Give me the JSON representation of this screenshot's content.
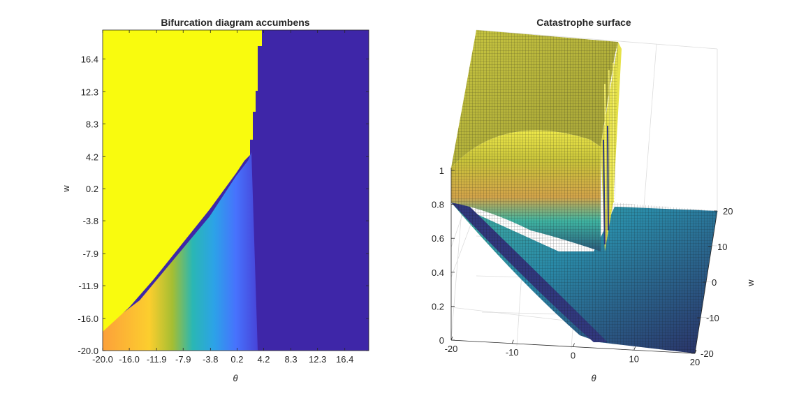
{
  "chart_data": [
    {
      "type": "heatmap",
      "title": "Bifurcation diagram accumbens",
      "xlabel": "θ",
      "ylabel": "w",
      "xlim": [
        -20,
        20
      ],
      "ylim": [
        -20,
        20
      ],
      "colormap": "parula",
      "xticks": [
        "-20.0",
        "-16.0",
        "-11.9",
        "-7.9",
        "-3.8",
        "0.2",
        "4.2",
        "8.3",
        "12.3",
        "16.4"
      ],
      "yticks": [
        "-20.0",
        "-16.0",
        "-11.9",
        "-7.9",
        "-3.8",
        "0.2",
        "4.2",
        "8.3",
        "12.3",
        "16.4"
      ],
      "xtick_values": [
        -20.0,
        -16.0,
        -11.9,
        -7.9,
        -3.8,
        0.2,
        4.2,
        8.3,
        12.3,
        16.4
      ],
      "ytick_values": [
        -20.0,
        -16.0,
        -11.9,
        -7.9,
        -3.8,
        0.2,
        4.2,
        8.3,
        12.3,
        16.4
      ],
      "value_range": [
        0,
        1
      ],
      "boundary": [
        {
          "w": 20.0,
          "theta": 4.2
        },
        {
          "w": 16.4,
          "theta": 3.6
        },
        {
          "w": 12.3,
          "theta": 3.1
        },
        {
          "w": 8.3,
          "theta": 2.7
        },
        {
          "w": 4.2,
          "theta": 2.4
        },
        {
          "w": 0.2,
          "theta": 2.2
        },
        {
          "w": -20.0,
          "theta": 1.4
        }
      ],
      "colors": {
        "high": "#f9fb0e",
        "low": "#3e26a8"
      }
    },
    {
      "type": "surface",
      "title": "Catastrophe surface",
      "xlabel": "θ",
      "ylabel": "w",
      "zlabel": "",
      "xlim": [
        -20,
        20
      ],
      "ylim": [
        -20,
        20
      ],
      "zlim": [
        0,
        1
      ],
      "xticks": [
        "-20",
        "-10",
        "0",
        "10",
        "20"
      ],
      "yticks": [
        "-20",
        "-10",
        "0",
        "10",
        "20"
      ],
      "zticks": [
        "0",
        "0.2",
        "0.4",
        "0.6",
        "0.8",
        "1"
      ],
      "xtick_values": [
        -20,
        -10,
        0,
        10,
        20
      ],
      "ytick_values": [
        -20,
        -10,
        0,
        10,
        20
      ],
      "ztick_values": [
        0,
        0.2,
        0.4,
        0.6,
        0.8,
        1
      ],
      "grid": true,
      "colormap": "parula"
    }
  ]
}
